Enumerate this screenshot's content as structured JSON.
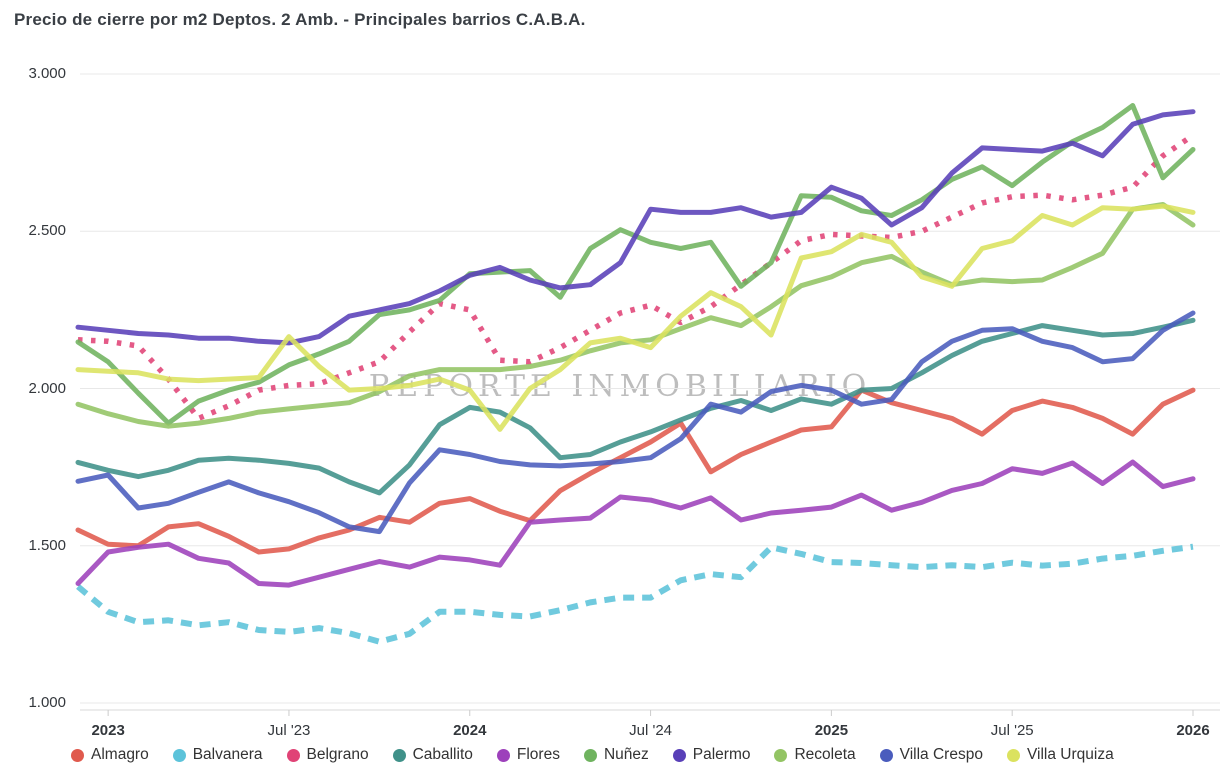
{
  "watermark": {
    "text": "REPORTE INMOBILIARIO"
  },
  "chart_data": {
    "type": "line",
    "title": "Precio de cierre por m2 Deptos. 2 Amb. - Principales barrios C.A.B.A.",
    "legend_position": "bottom",
    "grid": true,
    "y_axis": {
      "range": [
        1000,
        3000
      ],
      "ticks": [
        {
          "label": "3.000",
          "value": 3000
        },
        {
          "label": "2.500",
          "value": 2500
        },
        {
          "label": "2.000",
          "value": 2000
        },
        {
          "label": "1.500",
          "value": 1500
        },
        {
          "label": "1.000",
          "value": 1000
        }
      ]
    },
    "x_axis": {
      "ticks": [
        {
          "label": "2023",
          "index": 1,
          "bold": true
        },
        {
          "label": "Jul '23",
          "index": 7,
          "bold": false
        },
        {
          "label": "2024",
          "index": 13,
          "bold": true
        },
        {
          "label": "Jul '24",
          "index": 19,
          "bold": false
        },
        {
          "label": "2025",
          "index": 25,
          "bold": true
        },
        {
          "label": "Jul '25",
          "index": 31,
          "bold": false
        },
        {
          "label": "2026",
          "index": 37,
          "bold": true
        }
      ]
    },
    "months": [
      "2022-12",
      "2023-01",
      "2023-02",
      "2023-03",
      "2023-04",
      "2023-05",
      "2023-06",
      "2023-07",
      "2023-08",
      "2023-09",
      "2023-10",
      "2023-11",
      "2023-12",
      "2024-01",
      "2024-02",
      "2024-03",
      "2024-04",
      "2024-05",
      "2024-06",
      "2024-07",
      "2024-08",
      "2024-09",
      "2024-10",
      "2024-11",
      "2024-12",
      "2025-01",
      "2025-02",
      "2025-03",
      "2025-04",
      "2025-05",
      "2025-06",
      "2025-07",
      "2025-08",
      "2025-09",
      "2025-10",
      "2025-11",
      "2025-12",
      "2026-01"
    ],
    "series": [
      {
        "name": "Almagro",
        "slug": "almagro",
        "color": "#E05A4D",
        "line_style": "solid",
        "values": [
          1550,
          1505,
          1500,
          1560,
          1570,
          1530,
          1480,
          1490,
          1525,
          1550,
          1590,
          1575,
          1635,
          1650,
          1610,
          1580,
          1675,
          1730,
          1780,
          1830,
          1890,
          1735,
          1790,
          1830,
          1868,
          1878,
          1995,
          1955,
          1930,
          1905,
          1855,
          1930,
          1960,
          1940,
          1905,
          1855,
          1950,
          1995
        ]
      },
      {
        "name": "Balvanera",
        "slug": "balvanera",
        "color": "#5CC3DA",
        "line_style": "dashed",
        "values": [
          1370,
          1290,
          1257,
          1263,
          1247,
          1257,
          1232,
          1226,
          1238,
          1222,
          1195,
          1220,
          1290,
          1290,
          1280,
          1275,
          1295,
          1320,
          1335,
          1335,
          1390,
          1410,
          1400,
          1495,
          1474,
          1448,
          1445,
          1438,
          1432,
          1438,
          1432,
          1446,
          1437,
          1443,
          1459,
          1468,
          1484,
          1497
        ]
      },
      {
        "name": "Belgrano",
        "slug": "belgrano",
        "color": "#E04376",
        "line_style": "dotted",
        "values": [
          2155,
          2150,
          2135,
          2030,
          1905,
          1945,
          1995,
          2010,
          2015,
          2050,
          2085,
          2180,
          2270,
          2250,
          2090,
          2085,
          2130,
          2185,
          2240,
          2265,
          2210,
          2260,
          2330,
          2400,
          2470,
          2490,
          2485,
          2480,
          2500,
          2545,
          2590,
          2610,
          2615,
          2600,
          2615,
          2640,
          2740,
          2805
        ]
      },
      {
        "name": "Caballito",
        "slug": "caballito",
        "color": "#3F9189",
        "line_style": "solid",
        "values": [
          1765,
          1740,
          1720,
          1740,
          1772,
          1778,
          1772,
          1762,
          1747,
          1703,
          1668,
          1757,
          1885,
          1940,
          1925,
          1875,
          1780,
          1790,
          1830,
          1862,
          1900,
          1937,
          1962,
          1930,
          1967,
          1950,
          1995,
          2000,
          2050,
          2105,
          2150,
          2175,
          2200,
          2185,
          2170,
          2175,
          2195,
          2217
        ]
      },
      {
        "name": "Flores",
        "slug": "flores",
        "color": "#9D41BB",
        "line_style": "solid",
        "values": [
          1380,
          1480,
          1495,
          1505,
          1460,
          1445,
          1380,
          1375,
          1400,
          1425,
          1450,
          1432,
          1464,
          1455,
          1438,
          1575,
          1582,
          1588,
          1655,
          1645,
          1620,
          1652,
          1582,
          1604,
          1613,
          1623,
          1661,
          1613,
          1638,
          1676,
          1698,
          1745,
          1730,
          1763,
          1698,
          1766,
          1688,
          1713
        ]
      },
      {
        "name": "Nuñez",
        "slug": "nunez",
        "color": "#6FB35F",
        "line_style": "solid",
        "values": [
          2148,
          2085,
          1985,
          1890,
          1960,
          1995,
          2020,
          2075,
          2110,
          2150,
          2235,
          2250,
          2280,
          2365,
          2370,
          2375,
          2290,
          2445,
          2505,
          2465,
          2445,
          2465,
          2325,
          2400,
          2613,
          2608,
          2565,
          2550,
          2600,
          2665,
          2705,
          2645,
          2720,
          2785,
          2830,
          2900,
          2670,
          2760
        ]
      },
      {
        "name": "Palermo",
        "slug": "palermo",
        "color": "#5940B8",
        "line_style": "solid",
        "values": [
          2195,
          2185,
          2175,
          2170,
          2160,
          2160,
          2150,
          2145,
          2165,
          2230,
          2250,
          2270,
          2310,
          2360,
          2385,
          2345,
          2320,
          2330,
          2400,
          2570,
          2560,
          2560,
          2575,
          2545,
          2560,
          2640,
          2605,
          2520,
          2575,
          2685,
          2765,
          2760,
          2755,
          2780,
          2740,
          2840,
          2870,
          2880
        ]
      },
      {
        "name": "Recoleta",
        "slug": "recoleta",
        "color": "#93C464",
        "line_style": "solid",
        "values": [
          1950,
          1920,
          1895,
          1880,
          1890,
          1905,
          1925,
          1935,
          1945,
          1955,
          1990,
          2040,
          2060,
          2060,
          2060,
          2070,
          2090,
          2120,
          2145,
          2155,
          2190,
          2225,
          2200,
          2260,
          2327,
          2355,
          2400,
          2420,
          2370,
          2330,
          2345,
          2340,
          2345,
          2385,
          2430,
          2570,
          2585,
          2520
        ]
      },
      {
        "name": "Villa Crespo",
        "slug": "villa-crespo",
        "color": "#4A5CBD",
        "line_style": "solid",
        "values": [
          1705,
          1725,
          1620,
          1635,
          1670,
          1703,
          1668,
          1640,
          1605,
          1560,
          1545,
          1700,
          1805,
          1790,
          1768,
          1757,
          1754,
          1760,
          1768,
          1780,
          1840,
          1950,
          1925,
          1990,
          2010,
          1995,
          1950,
          1965,
          2085,
          2150,
          2185,
          2190,
          2150,
          2130,
          2085,
          2095,
          2185,
          2240
        ]
      },
      {
        "name": "Villa Urquiza",
        "slug": "villa-urquiza",
        "color": "#DBE25F",
        "line_style": "solid",
        "values": [
          2060,
          2055,
          2050,
          2030,
          2025,
          2030,
          2035,
          2165,
          2070,
          1995,
          2000,
          2010,
          2030,
          1995,
          1870,
          2000,
          2060,
          2145,
          2160,
          2130,
          2230,
          2305,
          2260,
          2170,
          2415,
          2435,
          2490,
          2465,
          2355,
          2325,
          2445,
          2470,
          2550,
          2520,
          2575,
          2570,
          2580,
          2560
        ]
      }
    ]
  }
}
